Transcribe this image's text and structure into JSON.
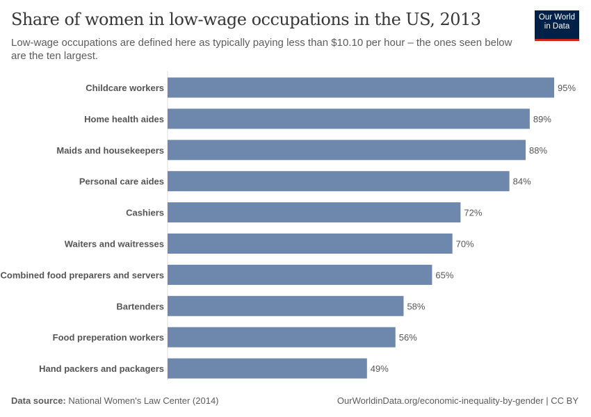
{
  "header": {
    "title": "Share of women in low-wage occupations in the US, 2013",
    "subtitle": "Low-wage occupations are defined here as typically paying less than $10.10 per hour – the ones seen below are the ten largest.",
    "logo_line1": "Our World",
    "logo_line2": "in Data"
  },
  "footer": {
    "source_label": "Data source:",
    "source": "National Women's Law Center (2014)",
    "url": "OurWorldinData.org/economic-inequality-by-gender | CC BY"
  },
  "colors": {
    "bar": "#6d87ad",
    "logo_bg": "#002147",
    "logo_accent": "#ce261e"
  },
  "chart_data": {
    "type": "bar",
    "orientation": "horizontal",
    "categories": [
      "Childcare workers",
      "Home health aides",
      "Maids and housekeepers",
      "Personal care aides",
      "Cashiers",
      "Waiters and waitresses",
      "Combined food preparers and servers",
      "Bartenders",
      "Food preperation workers",
      "Hand packers and packagers"
    ],
    "values": [
      95,
      89,
      88,
      84,
      72,
      70,
      65,
      58,
      56,
      49
    ],
    "value_labels": [
      "95%",
      "89%",
      "88%",
      "84%",
      "72%",
      "70%",
      "65%",
      "58%",
      "56%",
      "49%"
    ],
    "unit": "%",
    "xlim": [
      0,
      95
    ],
    "grid": false
  }
}
